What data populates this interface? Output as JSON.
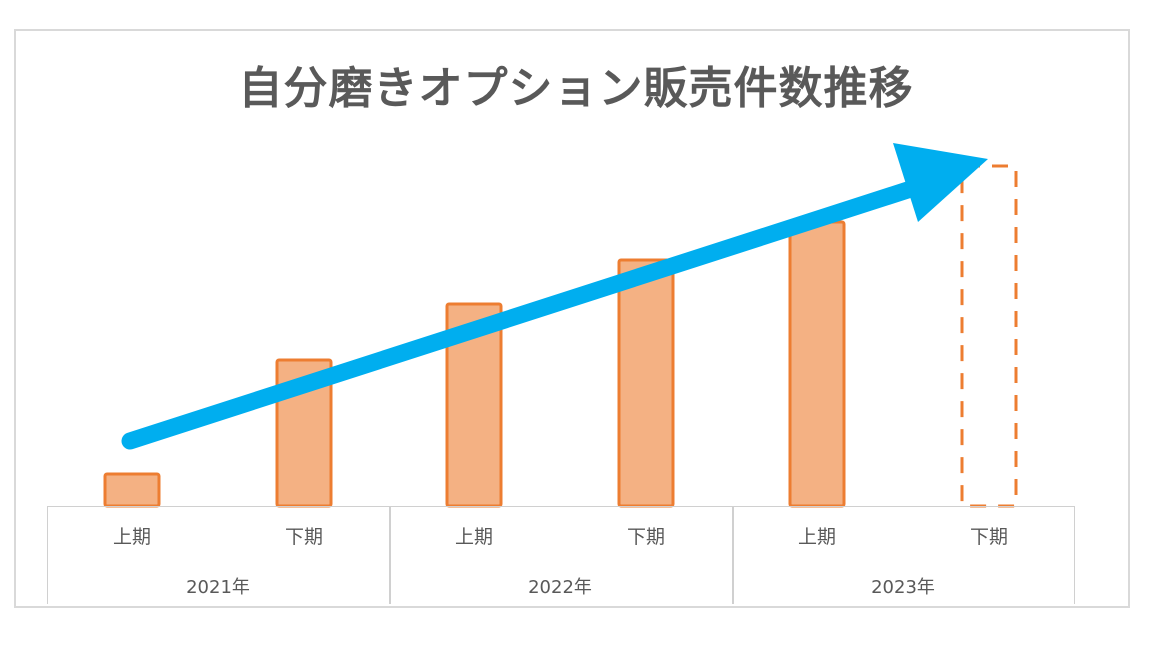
{
  "chart_data": {
    "type": "bar",
    "title": "自分磨きオプション販売件数推移",
    "xlabel": "",
    "ylabel": "",
    "grid": false,
    "legend": null,
    "categories": [
      "2021年 上期",
      "2021年 下期",
      "2022年 上期",
      "2022年 下期",
      "2023年 上期",
      "2023年 下期"
    ],
    "groups": [
      {
        "label": "2021年",
        "periods": [
          "上期",
          "下期"
        ]
      },
      {
        "label": "2022年",
        "periods": [
          "上期",
          "下期"
        ]
      },
      {
        "label": "2023年",
        "periods": [
          "上期",
          "下期"
        ]
      }
    ],
    "values": [
      32,
      146,
      202,
      246,
      284,
      340
    ],
    "value_note": "relative heights (no y-axis shown); last bar is a dashed outline (forecast/target)",
    "bar_styles": [
      "solid",
      "solid",
      "solid",
      "solid",
      "solid",
      "dashed"
    ],
    "annotations": [
      {
        "type": "arrow",
        "direction": "upward trend",
        "from_category": "2021年 上期",
        "to_category": "2023年 下期",
        "color": "#00aeef"
      }
    ],
    "colors": {
      "bar_fill": "#f4b183",
      "bar_edge": "#ed7d31",
      "arrow": "#00aeef",
      "title": "#595959",
      "axis_text": "#595959",
      "border": "#d9d9d9"
    }
  }
}
